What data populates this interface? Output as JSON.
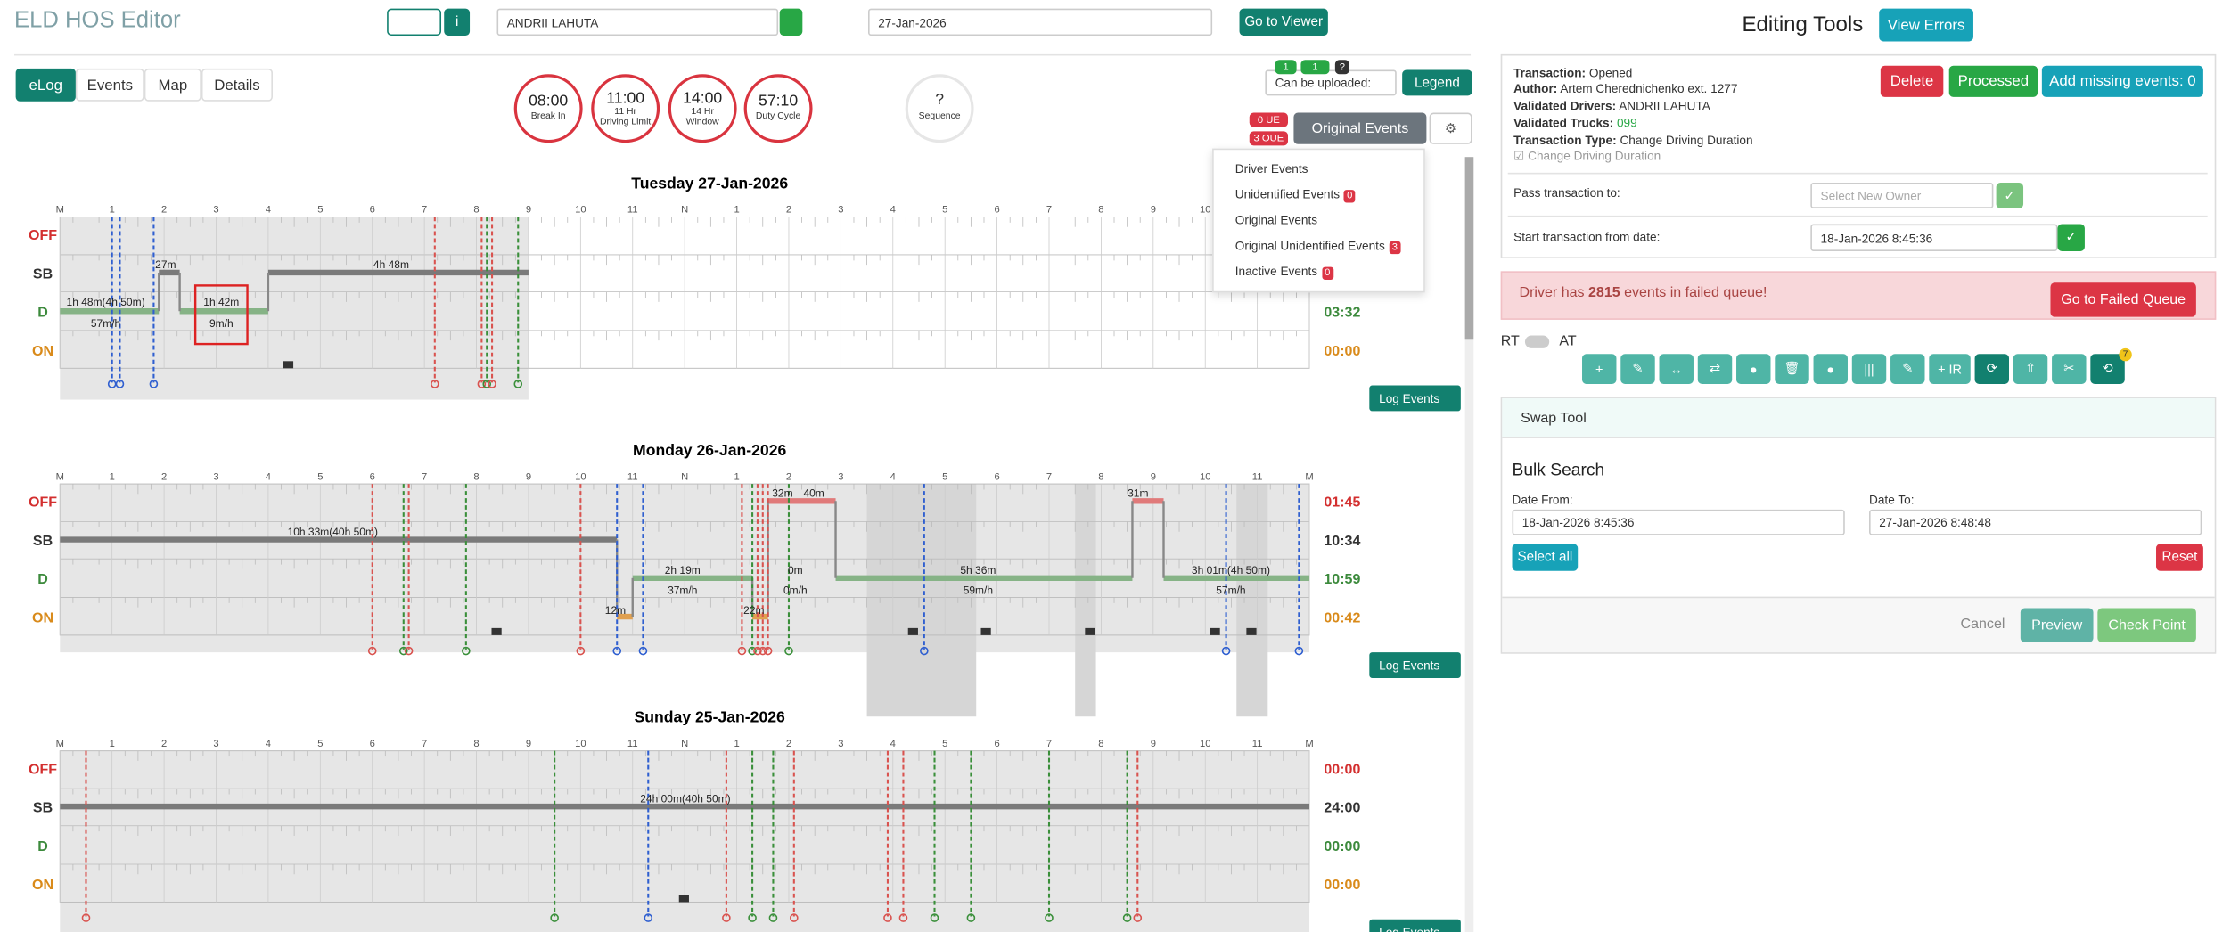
{
  "header": {
    "title": "ELD HOS Editor",
    "driver": "ANDRII LAHUTA",
    "date": "27-Jan-2026",
    "go_viewer": "Go to Viewer"
  },
  "tabs": [
    "eLog",
    "Events",
    "Map",
    "Details"
  ],
  "clocks": [
    {
      "value": "08:00",
      "label": "Break In"
    },
    {
      "value": "11:00",
      "sub": "11 Hr",
      "label": "Driving Limit"
    },
    {
      "value": "14:00",
      "sub": "14 Hr",
      "label": "Window"
    },
    {
      "value": "57:10",
      "label": "Duty Cycle"
    }
  ],
  "sequence": {
    "value": "?",
    "label": "Sequence"
  },
  "upload": {
    "label": "Can be uploaded:",
    "badges": [
      "1",
      "1",
      "?"
    ]
  },
  "legend": "Legend",
  "ue": "0 UE",
  "oue": "3 OUE",
  "original_events": "Original Events",
  "dropdown": [
    {
      "label": "Driver Events"
    },
    {
      "label": "Unidentified Events",
      "badge": 0
    },
    {
      "label": "Original Events"
    },
    {
      "label": "Original Unidentified Events",
      "badge": 3
    },
    {
      "label": "Inactive Events",
      "badge": 0
    }
  ],
  "log": {
    "hours": [
      "M",
      "1",
      "2",
      "3",
      "4",
      "5",
      "6",
      "7",
      "8",
      "9",
      "10",
      "11",
      "N",
      "1",
      "2",
      "3",
      "4",
      "5",
      "6",
      "7",
      "8",
      "9",
      "10",
      "11",
      "M"
    ],
    "statuses": [
      "OFF",
      "SB",
      "D",
      "ON"
    ],
    "log_events": "Log Events",
    "days": [
      {
        "title": "Tuesday 27-Jan-2026",
        "totals": {
          "d": "03:32",
          "on": "00:00"
        },
        "annotations": [
          "27m",
          "4h 48m",
          "1h 48m(4h 50m)",
          "57m/h",
          "1h 42m",
          "9m/h"
        ]
      },
      {
        "title": "Monday 26-Jan-2026",
        "totals": {
          "off": "01:45",
          "sb": "10:34",
          "d": "10:59",
          "on": "00:42"
        },
        "annotations": [
          "10h 33m(40h 50m)",
          "2h 19m",
          "37m/h",
          "32m",
          "40m",
          "0m",
          "0m/h",
          "5h 36m",
          "59m/h",
          "31m",
          "3h 01m(4h 50m)",
          "57m/h",
          "12m",
          "22m"
        ]
      },
      {
        "title": "Sunday 25-Jan-2026",
        "totals": {
          "off": "00:00",
          "sb": "24:00",
          "d": "00:00",
          "on": "00:00"
        },
        "annotations": [
          "24h 00m(40h 50m)"
        ]
      }
    ]
  },
  "tools": {
    "title": "Editing Tools",
    "view_errors": "View Errors",
    "info": [
      {
        "label": "Transaction:",
        "value": "Opened"
      },
      {
        "label": "Author:",
        "value": "Artem Cherednichenko ext. 1277"
      },
      {
        "label": "Validated Drivers:",
        "value": "ANDRII LAHUTA"
      },
      {
        "label": "Validated Trucks:",
        "value": "099"
      },
      {
        "label": "Transaction Type:",
        "value": "Change Driving Duration"
      }
    ],
    "checkbox": "Change Driving Duration",
    "delete": "Delete",
    "processed": "Processed",
    "add_missing": "Add missing events: 0",
    "pass_to": "Pass transaction to:",
    "select_owner": "Select New Owner",
    "start_from": "Start transaction from date:",
    "start_date": "18-Jan-2026 8:45:36",
    "alert": {
      "pre": "Driver has",
      "count": 2815,
      "post": "events in failed queue!",
      "button": "Go to Failed Queue"
    },
    "rt": "RT",
    "at": "AT",
    "ir": "+ IR",
    "badge": "7",
    "swap": "Swap Tool",
    "bulk": "Bulk Search",
    "date_from_label": "Date From:",
    "date_from": "18-Jan-2026 8:45:36",
    "date_to_label": "Date To:",
    "date_to": "27-Jan-2026 8:48:48",
    "select_all": "Select all",
    "reset": "Reset",
    "cancel": "Cancel",
    "preview": "Preview",
    "check_point": "Check Point"
  }
}
